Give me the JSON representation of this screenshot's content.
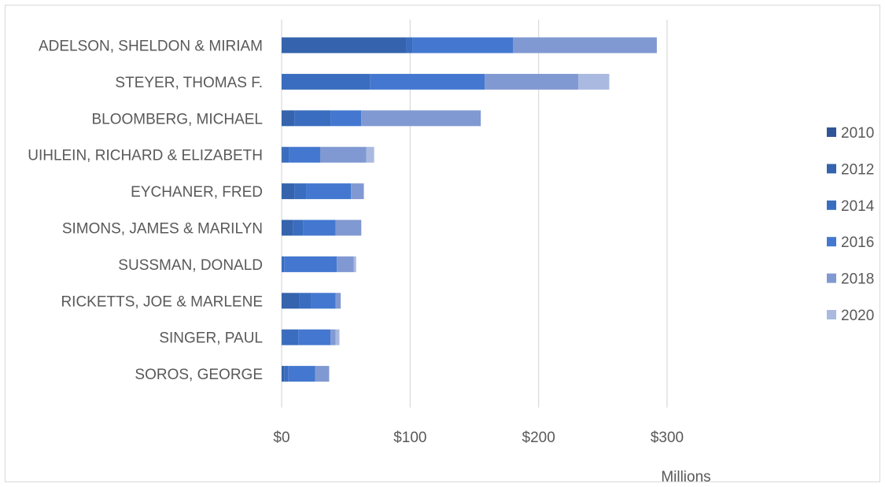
{
  "chart_data": {
    "type": "bar",
    "orientation": "horizontal",
    "stacked": true,
    "categories": [
      "ADELSON, SHELDON & MIRIAM",
      "STEYER, THOMAS F.",
      "BLOOMBERG, MICHAEL",
      "UIHLEIN, RICHARD & ELIZABETH",
      "EYCHANER, FRED",
      "SIMONS, JAMES & MARILYN",
      "SUSSMAN, DONALD",
      "RICKETTS,  JOE & MARLENE",
      "SINGER, PAUL",
      "SOROS, GEORGE"
    ],
    "series": [
      {
        "name": "2010",
        "color": "#2f5597",
        "values": [
          0,
          0,
          0,
          0,
          0,
          0,
          0,
          0,
          0,
          0
        ]
      },
      {
        "name": "2012",
        "color": "#3563ad",
        "values": [
          97,
          0,
          10,
          1,
          10,
          9,
          0,
          14,
          1,
          2
        ]
      },
      {
        "name": "2014",
        "color": "#3a6dbf",
        "values": [
          5,
          69,
          28,
          5,
          9,
          8,
          2,
          9,
          12,
          3
        ]
      },
      {
        "name": "2016",
        "color": "#4478d0",
        "values": [
          78,
          89,
          24,
          24,
          35,
          25,
          41,
          19,
          25,
          21
        ]
      },
      {
        "name": "2018",
        "color": "#8199d2",
        "values": [
          112,
          73,
          93,
          36,
          10,
          20,
          13,
          4,
          4,
          11
        ]
      },
      {
        "name": "2020",
        "color": "#a9b9e0",
        "values": [
          0,
          24,
          0,
          6,
          0,
          0,
          2,
          0,
          3,
          0
        ]
      }
    ],
    "x_ticks": [
      "$0",
      "$100",
      "$200",
      "$300"
    ],
    "x_tick_values": [
      0,
      100,
      200,
      300
    ],
    "xlim": [
      0,
      400
    ],
    "xlabel": "Millions",
    "grid": true,
    "legend_position": "right"
  }
}
